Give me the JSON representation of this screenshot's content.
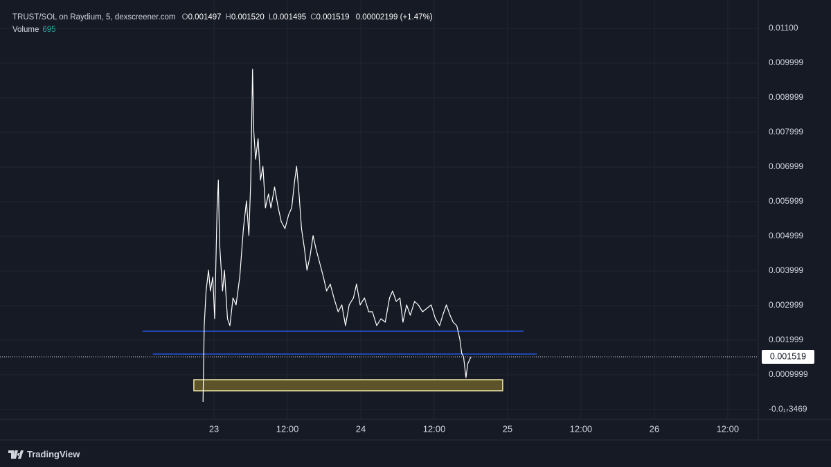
{
  "chart_data": {
    "type": "line",
    "title": "TRUST/SOL on Raydium, 5, dexscreener.com",
    "ohlc": [
      {
        "label": "O",
        "value": "0.001497"
      },
      {
        "label": "H",
        "value": "0.001520"
      },
      {
        "label": "L",
        "value": "0.001495"
      },
      {
        "label": "C",
        "value": "0.001519"
      }
    ],
    "change": "0.00002199 (+1.47%)",
    "volume": {
      "label": "Volume",
      "value": 695
    },
    "x": [
      -1.8,
      -1.6,
      -1.3,
      -0.9,
      -0.6,
      -0.2,
      0.1,
      0.5,
      0.7,
      0.9,
      1.4,
      1.7,
      2.2,
      2.6,
      3.1,
      3.6,
      4.2,
      4.8,
      5.3,
      5.7,
      6.0,
      6.3,
      6.5,
      6.8,
      7.2,
      7.6,
      8.0,
      8.4,
      8.9,
      9.3,
      9.9,
      10.5,
      11.0,
      11.6,
      12.2,
      12.7,
      13.2,
      13.5,
      13.9,
      14.3,
      14.8,
      15.2,
      15.7,
      16.2,
      16.7,
      17.3,
      17.9,
      18.4,
      19.0,
      19.6,
      20.3,
      20.9,
      21.5,
      22.1,
      22.8,
      23.3,
      23.9,
      24.6,
      25.3,
      25.9,
      26.6,
      27.3,
      28.0,
      28.7,
      29.2,
      29.8,
      30.4,
      30.9,
      31.5,
      32.1,
      32.8,
      33.4,
      34.1,
      34.8,
      35.5,
      36.2,
      36.9,
      37.4,
      38.0,
      38.6,
      39.1,
      39.7,
      40.2,
      40.5,
      40.8,
      41.2,
      41.5,
      42.0
    ],
    "series": [
      {
        "color": "#ffffff",
        "values": [
          0.00022,
          0.00242,
          0.00342,
          0.00402,
          0.00342,
          0.00382,
          0.00262,
          0.00582,
          0.00662,
          0.00482,
          0.00342,
          0.00402,
          0.00262,
          0.00242,
          0.00322,
          0.00302,
          0.00382,
          0.00522,
          0.00602,
          0.00502,
          0.00662,
          0.00982,
          0.00802,
          0.00722,
          0.00782,
          0.00662,
          0.00702,
          0.00582,
          0.00622,
          0.00582,
          0.00642,
          0.00582,
          0.00542,
          0.00522,
          0.00562,
          0.00582,
          0.00662,
          0.00702,
          0.00622,
          0.00522,
          0.00462,
          0.00402,
          0.00442,
          0.00502,
          0.00462,
          0.00422,
          0.00382,
          0.00342,
          0.00362,
          0.00322,
          0.00282,
          0.00302,
          0.00242,
          0.00302,
          0.00322,
          0.00362,
          0.00302,
          0.00322,
          0.00282,
          0.00282,
          0.00242,
          0.00262,
          0.00252,
          0.00322,
          0.00342,
          0.00312,
          0.00322,
          0.00252,
          0.00302,
          0.00272,
          0.00312,
          0.00302,
          0.00282,
          0.00292,
          0.00302,
          0.00262,
          0.00242,
          0.00272,
          0.00302,
          0.00272,
          0.00252,
          0.00242,
          0.00202,
          0.00162,
          0.00152,
          0.00092,
          0.00132,
          0.001519
        ]
      }
    ],
    "xlim": [
      -35,
      89
    ],
    "ylim": [
      -0.00028,
      0.01182
    ],
    "xticks": [
      {
        "value": 0,
        "label": "23"
      },
      {
        "value": 12,
        "label": "12:00"
      },
      {
        "value": 24,
        "label": "24"
      },
      {
        "value": 36,
        "label": "12:00"
      },
      {
        "value": 48,
        "label": "25"
      },
      {
        "value": 60,
        "label": "12:00"
      },
      {
        "value": 72,
        "label": "26"
      },
      {
        "value": 84,
        "label": "12:00"
      }
    ],
    "yticks": [
      {
        "value": 0.011,
        "label": "0.01100"
      },
      0.009999,
      0.008999,
      0.007999,
      0.006999,
      0.005999,
      0.004999,
      0.003999,
      0.002999,
      0.001999,
      0.0009999,
      {
        "value": -3.469e-18,
        "label": "-0.0₁₇3469"
      }
    ],
    "grid": true,
    "last_price_line": true,
    "levels": [
      {
        "value": 0.00226,
        "x": [
          -11.7,
          50.6
        ],
        "color": "#2962ff"
      },
      {
        "value": 0.0016,
        "x": [
          -10.0,
          52.8
        ],
        "color": "#2962ff"
      }
    ],
    "zones": [
      {
        "range": [
          0.00054,
          0.00086
        ],
        "x": [
          -3.3,
          47.2
        ],
        "color": "#5c5428",
        "border": "#f2e6a6"
      }
    ]
  },
  "brand": "TradingView"
}
